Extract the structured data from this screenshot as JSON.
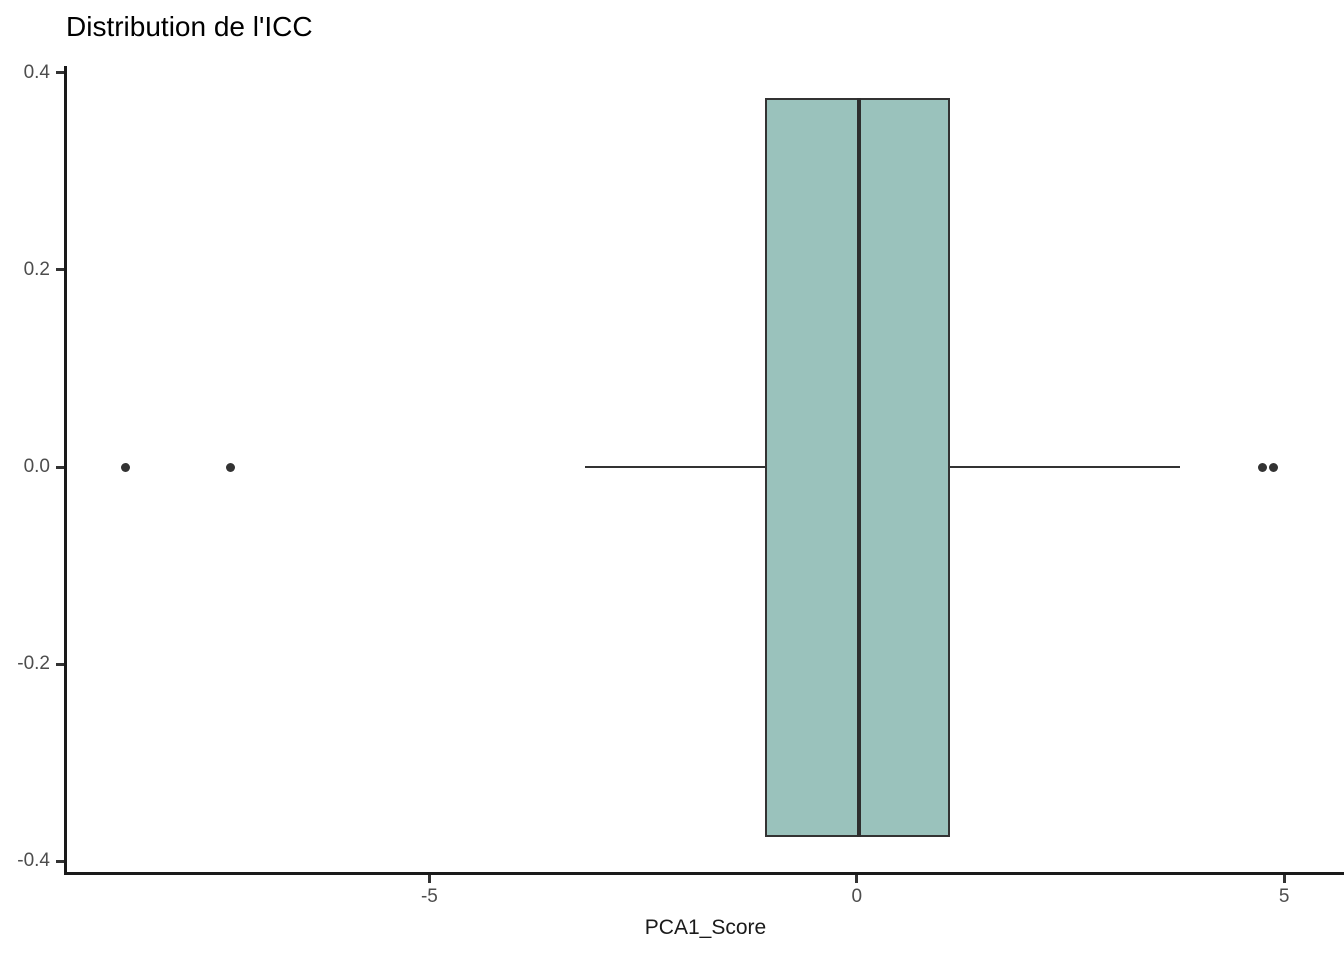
{
  "chart_data": {
    "type": "boxplot",
    "orientation": "horizontal",
    "title": "Distribution de l'ICC",
    "xlabel": "PCA1_Score",
    "ylabel": "",
    "grid": false,
    "legend": false,
    "xlim": [
      -9.24,
      5.7
    ],
    "ylim": [
      -0.411,
      0.407
    ],
    "x_ticks": [
      {
        "value": -5,
        "label": "-5"
      },
      {
        "value": 0,
        "label": "0"
      },
      {
        "value": 5,
        "label": "5"
      }
    ],
    "y_ticks": [
      {
        "value": 0.4,
        "label": "0.4"
      },
      {
        "value": 0.2,
        "label": "0.2"
      },
      {
        "value": 0.0,
        "label": "0.0"
      },
      {
        "value": -0.2,
        "label": "-0.2"
      },
      {
        "value": -0.4,
        "label": "-0.4"
      }
    ],
    "series": [
      {
        "name": "ICC",
        "median": 0.03,
        "q1": -1.07,
        "q3": 1.09,
        "whisker_low": -3.18,
        "whisker_high": 3.78,
        "outliers": [
          -8.56,
          -7.33,
          4.75,
          4.87
        ],
        "box_center_y": 0,
        "box_half_height": 0.375
      }
    ],
    "colors": {
      "box_fill": "#9ac2bc",
      "box_border": "#333333",
      "median_line": "#2e2e2e",
      "whisker": "#333333",
      "outlier": "#333333",
      "axis_line": "#1a1a1a",
      "tick_label": "#4d4d4d",
      "axis_title": "#1a1a1a",
      "title": "#000000",
      "background": "#ffffff"
    }
  }
}
